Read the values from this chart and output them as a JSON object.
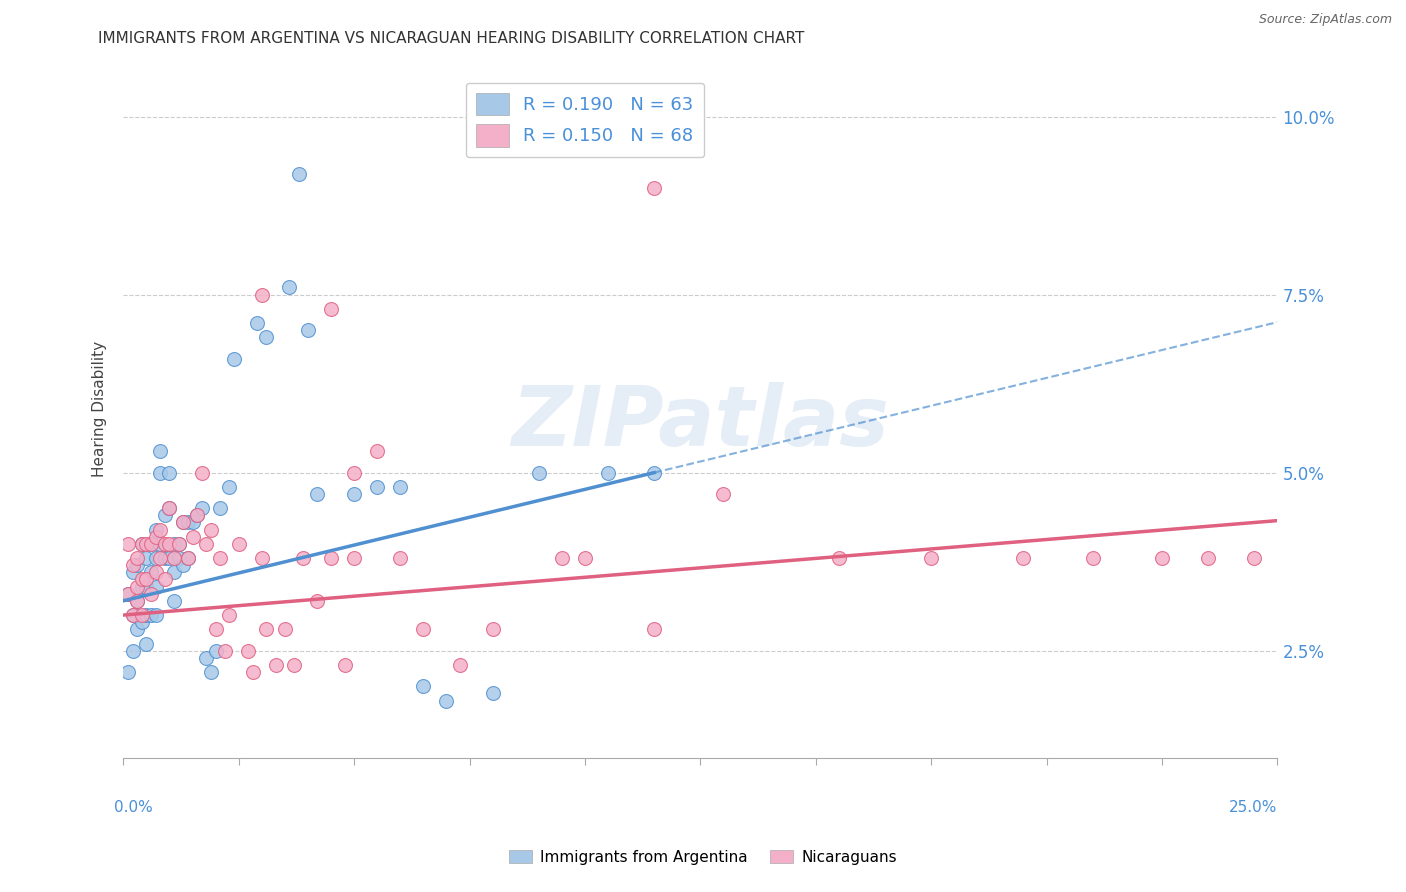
{
  "title": "IMMIGRANTS FROM ARGENTINA VS NICARAGUAN HEARING DISABILITY CORRELATION CHART",
  "source": "Source: ZipAtlas.com",
  "ylabel": "Hearing Disability",
  "ytick_values": [
    0.025,
    0.05,
    0.075,
    0.1
  ],
  "xlim": [
    0.0,
    0.25
  ],
  "ylim": [
    0.01,
    0.108
  ],
  "color_argentina": "#a8c8e8",
  "color_nicaragua": "#f4b0c8",
  "line_color_argentina": "#5090d0",
  "line_color_nicaragua": "#e06080",
  "background_color": "#ffffff",
  "watermark": "ZIPatlas",
  "argentina_x": [
    0.001,
    0.001,
    0.002,
    0.002,
    0.002,
    0.003,
    0.003,
    0.003,
    0.004,
    0.004,
    0.004,
    0.005,
    0.005,
    0.005,
    0.005,
    0.006,
    0.006,
    0.006,
    0.007,
    0.007,
    0.007,
    0.007,
    0.008,
    0.008,
    0.008,
    0.009,
    0.009,
    0.01,
    0.01,
    0.01,
    0.011,
    0.011,
    0.011,
    0.012,
    0.012,
    0.013,
    0.013,
    0.014,
    0.014,
    0.015,
    0.016,
    0.017,
    0.018,
    0.019,
    0.02,
    0.021,
    0.023,
    0.024,
    0.029,
    0.031,
    0.036,
    0.038,
    0.04,
    0.042,
    0.05,
    0.055,
    0.06,
    0.065,
    0.07,
    0.08,
    0.09,
    0.105,
    0.115
  ],
  "argentina_y": [
    0.033,
    0.022,
    0.03,
    0.036,
    0.025,
    0.032,
    0.037,
    0.028,
    0.034,
    0.04,
    0.029,
    0.034,
    0.038,
    0.03,
    0.026,
    0.036,
    0.04,
    0.03,
    0.038,
    0.042,
    0.034,
    0.03,
    0.05,
    0.053,
    0.04,
    0.038,
    0.044,
    0.05,
    0.045,
    0.038,
    0.04,
    0.036,
    0.032,
    0.04,
    0.038,
    0.043,
    0.037,
    0.043,
    0.038,
    0.043,
    0.044,
    0.045,
    0.024,
    0.022,
    0.025,
    0.045,
    0.048,
    0.066,
    0.071,
    0.069,
    0.076,
    0.092,
    0.07,
    0.047,
    0.047,
    0.048,
    0.048,
    0.02,
    0.018,
    0.019,
    0.05,
    0.05,
    0.05
  ],
  "nicaragua_x": [
    0.001,
    0.001,
    0.002,
    0.002,
    0.003,
    0.003,
    0.003,
    0.004,
    0.004,
    0.004,
    0.005,
    0.005,
    0.006,
    0.006,
    0.007,
    0.007,
    0.008,
    0.008,
    0.009,
    0.009,
    0.01,
    0.01,
    0.011,
    0.012,
    0.013,
    0.014,
    0.015,
    0.016,
    0.017,
    0.018,
    0.019,
    0.02,
    0.021,
    0.022,
    0.023,
    0.025,
    0.027,
    0.028,
    0.03,
    0.031,
    0.033,
    0.035,
    0.037,
    0.039,
    0.042,
    0.045,
    0.048,
    0.05,
    0.055,
    0.06,
    0.065,
    0.073,
    0.08,
    0.095,
    0.1,
    0.115,
    0.13,
    0.155,
    0.175,
    0.195,
    0.21,
    0.225,
    0.235,
    0.245,
    0.115,
    0.05,
    0.045,
    0.03
  ],
  "nicaragua_y": [
    0.033,
    0.04,
    0.03,
    0.037,
    0.032,
    0.038,
    0.034,
    0.035,
    0.04,
    0.03,
    0.035,
    0.04,
    0.033,
    0.04,
    0.036,
    0.041,
    0.038,
    0.042,
    0.035,
    0.04,
    0.04,
    0.045,
    0.038,
    0.04,
    0.043,
    0.038,
    0.041,
    0.044,
    0.05,
    0.04,
    0.042,
    0.028,
    0.038,
    0.025,
    0.03,
    0.04,
    0.025,
    0.022,
    0.038,
    0.028,
    0.023,
    0.028,
    0.023,
    0.038,
    0.032,
    0.038,
    0.023,
    0.038,
    0.053,
    0.038,
    0.028,
    0.023,
    0.028,
    0.038,
    0.038,
    0.028,
    0.047,
    0.038,
    0.038,
    0.038,
    0.038,
    0.038,
    0.038,
    0.038,
    0.09,
    0.05,
    0.073,
    0.075
  ]
}
